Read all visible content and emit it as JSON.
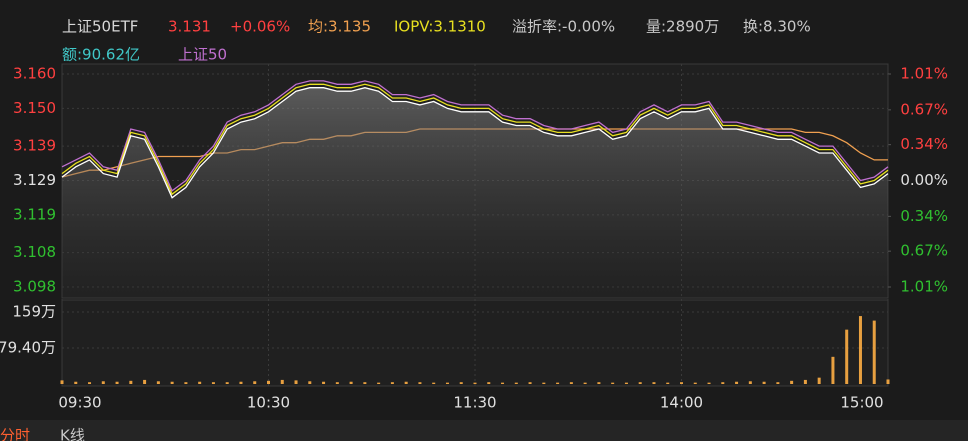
{
  "header": {
    "name": "上证50ETF",
    "price": "3.131",
    "change": "+0.06%",
    "avg": "均:3.135",
    "iopv": "IOPV:3.1310",
    "premium": "溢折率:-0.00%",
    "volume": "量:2890万",
    "turnover": "换:8.30%",
    "amount": "额:90.62亿"
  },
  "tabs": [
    "分时",
    "K线"
  ],
  "chart_data": [
    {
      "type": "line",
      "categories": [
        "09:30",
        null,
        null,
        null,
        null,
        null,
        null,
        null,
        null,
        null,
        null,
        null,
        null,
        null,
        null,
        "10:30",
        null,
        null,
        null,
        null,
        null,
        null,
        null,
        null,
        null,
        null,
        null,
        null,
        null,
        null,
        "11:30",
        null,
        null,
        null,
        null,
        null,
        null,
        null,
        null,
        null,
        null,
        null,
        null,
        null,
        null,
        "14:00",
        null,
        null,
        null,
        null,
        null,
        null,
        null,
        null,
        null,
        null,
        null,
        null,
        null,
        null,
        "15:00"
      ],
      "ylim": [
        3.098,
        3.16
      ],
      "yticks": [
        {
          "value": 3.16,
          "label": "3.160"
        },
        {
          "value": 3.15,
          "label": "3.150"
        },
        3.139,
        3.129,
        3.119,
        3.108,
        3.098
      ],
      "y2lim": [
        -1.01,
        1.01
      ],
      "y2ticks": [
        {
          "value": 1.01,
          "label": "1.01%"
        },
        {
          "value": 0.67,
          "label": "0.67%"
        },
        {
          "value": 0.34,
          "label": "0.34%"
        },
        {
          "value": 0,
          "label": "0.00%"
        },
        {
          "value": -0.34,
          "label": "0.34%"
        },
        {
          "value": -0.67,
          "label": "0.67%"
        },
        {
          "value": -1.01,
          "label": "1.01%"
        }
      ],
      "grid": true,
      "series": [
        {
          "color": "#f0a050",
          "values": [
            3.13,
            3.131,
            3.132,
            3.132,
            3.133,
            3.134,
            3.135,
            3.136,
            3.136,
            3.136,
            3.136,
            3.137,
            3.137,
            3.138,
            3.138,
            3.139,
            3.14,
            3.14,
            3.141,
            3.141,
            3.142,
            3.142,
            3.143,
            3.143,
            3.143,
            3.143,
            3.144,
            3.144,
            3.144,
            3.144,
            3.144,
            3.144,
            3.144,
            3.144,
            3.144,
            3.144,
            3.144,
            3.144,
            3.144,
            3.144,
            3.144,
            3.144,
            3.144,
            3.144,
            3.144,
            3.144,
            3.144,
            3.144,
            3.144,
            3.144,
            3.144,
            3.144,
            3.144,
            3.144,
            3.143,
            3.143,
            3.142,
            3.14,
            3.137,
            3.135,
            3.135
          ]
        },
        {
          "name": "上证50",
          "color": "#c070d0",
          "values": [
            3.133,
            3.135,
            3.137,
            3.133,
            3.132,
            3.144,
            3.143,
            3.135,
            3.126,
            3.129,
            3.135,
            3.139,
            3.146,
            3.148,
            3.149,
            3.151,
            3.154,
            3.157,
            3.158,
            3.158,
            3.157,
            3.157,
            3.158,
            3.157,
            3.154,
            3.154,
            3.153,
            3.154,
            3.152,
            3.151,
            3.151,
            3.151,
            3.148,
            3.147,
            3.147,
            3.145,
            3.144,
            3.144,
            3.145,
            3.146,
            3.143,
            3.144,
            3.149,
            3.151,
            3.149,
            3.151,
            3.151,
            3.152,
            3.146,
            3.146,
            3.145,
            3.144,
            3.143,
            3.143,
            3.141,
            3.139,
            3.139,
            3.134,
            3.129,
            3.13,
            3.133
          ]
        },
        {
          "color": "#e8e020",
          "values": [
            3.131,
            3.134,
            3.136,
            3.132,
            3.131,
            3.143,
            3.142,
            3.134,
            3.125,
            3.128,
            3.134,
            3.138,
            3.145,
            3.147,
            3.148,
            3.15,
            3.153,
            3.156,
            3.157,
            3.157,
            3.156,
            3.156,
            3.157,
            3.156,
            3.153,
            3.153,
            3.152,
            3.153,
            3.151,
            3.15,
            3.15,
            3.15,
            3.147,
            3.146,
            3.146,
            3.144,
            3.143,
            3.143,
            3.144,
            3.145,
            3.142,
            3.143,
            3.148,
            3.15,
            3.148,
            3.15,
            3.15,
            3.151,
            3.145,
            3.145,
            3.144,
            3.143,
            3.142,
            3.142,
            3.14,
            3.138,
            3.138,
            3.133,
            3.128,
            3.129,
            3.132
          ]
        },
        {
          "color": "#ffffff",
          "area": true,
          "values": [
            3.13,
            3.133,
            3.135,
            3.131,
            3.13,
            3.142,
            3.141,
            3.133,
            3.124,
            3.127,
            3.133,
            3.137,
            3.144,
            3.146,
            3.147,
            3.149,
            3.152,
            3.155,
            3.156,
            3.156,
            3.155,
            3.155,
            3.156,
            3.155,
            3.152,
            3.152,
            3.151,
            3.152,
            3.15,
            3.149,
            3.149,
            3.149,
            3.146,
            3.145,
            3.145,
            3.143,
            3.142,
            3.142,
            3.143,
            3.144,
            3.141,
            3.142,
            3.147,
            3.149,
            3.147,
            3.149,
            3.149,
            3.15,
            3.144,
            3.144,
            3.143,
            3.142,
            3.141,
            3.141,
            3.139,
            3.137,
            3.137,
            3.132,
            3.127,
            3.128,
            3.131
          ]
        }
      ]
    },
    {
      "type": "bar",
      "color": "#e8a040",
      "ylim": [
        0,
        159
      ],
      "yticks": [
        {
          "value": 159,
          "label": "159万"
        },
        {
          "value": 79.4,
          "label": "79.40万"
        }
      ],
      "values": [
        8,
        5,
        4,
        6,
        5,
        7,
        9,
        6,
        5,
        4,
        5,
        4,
        4,
        5,
        6,
        7,
        9,
        8,
        6,
        5,
        4,
        5,
        4,
        3,
        4,
        5,
        4,
        3,
        3,
        4,
        3,
        4,
        3,
        3,
        4,
        3,
        3,
        4,
        3,
        4,
        3,
        3,
        4,
        4,
        3,
        4,
        3,
        3,
        4,
        5,
        6,
        5,
        4,
        7,
        9,
        14,
        60,
        120,
        150,
        140,
        10
      ]
    }
  ]
}
